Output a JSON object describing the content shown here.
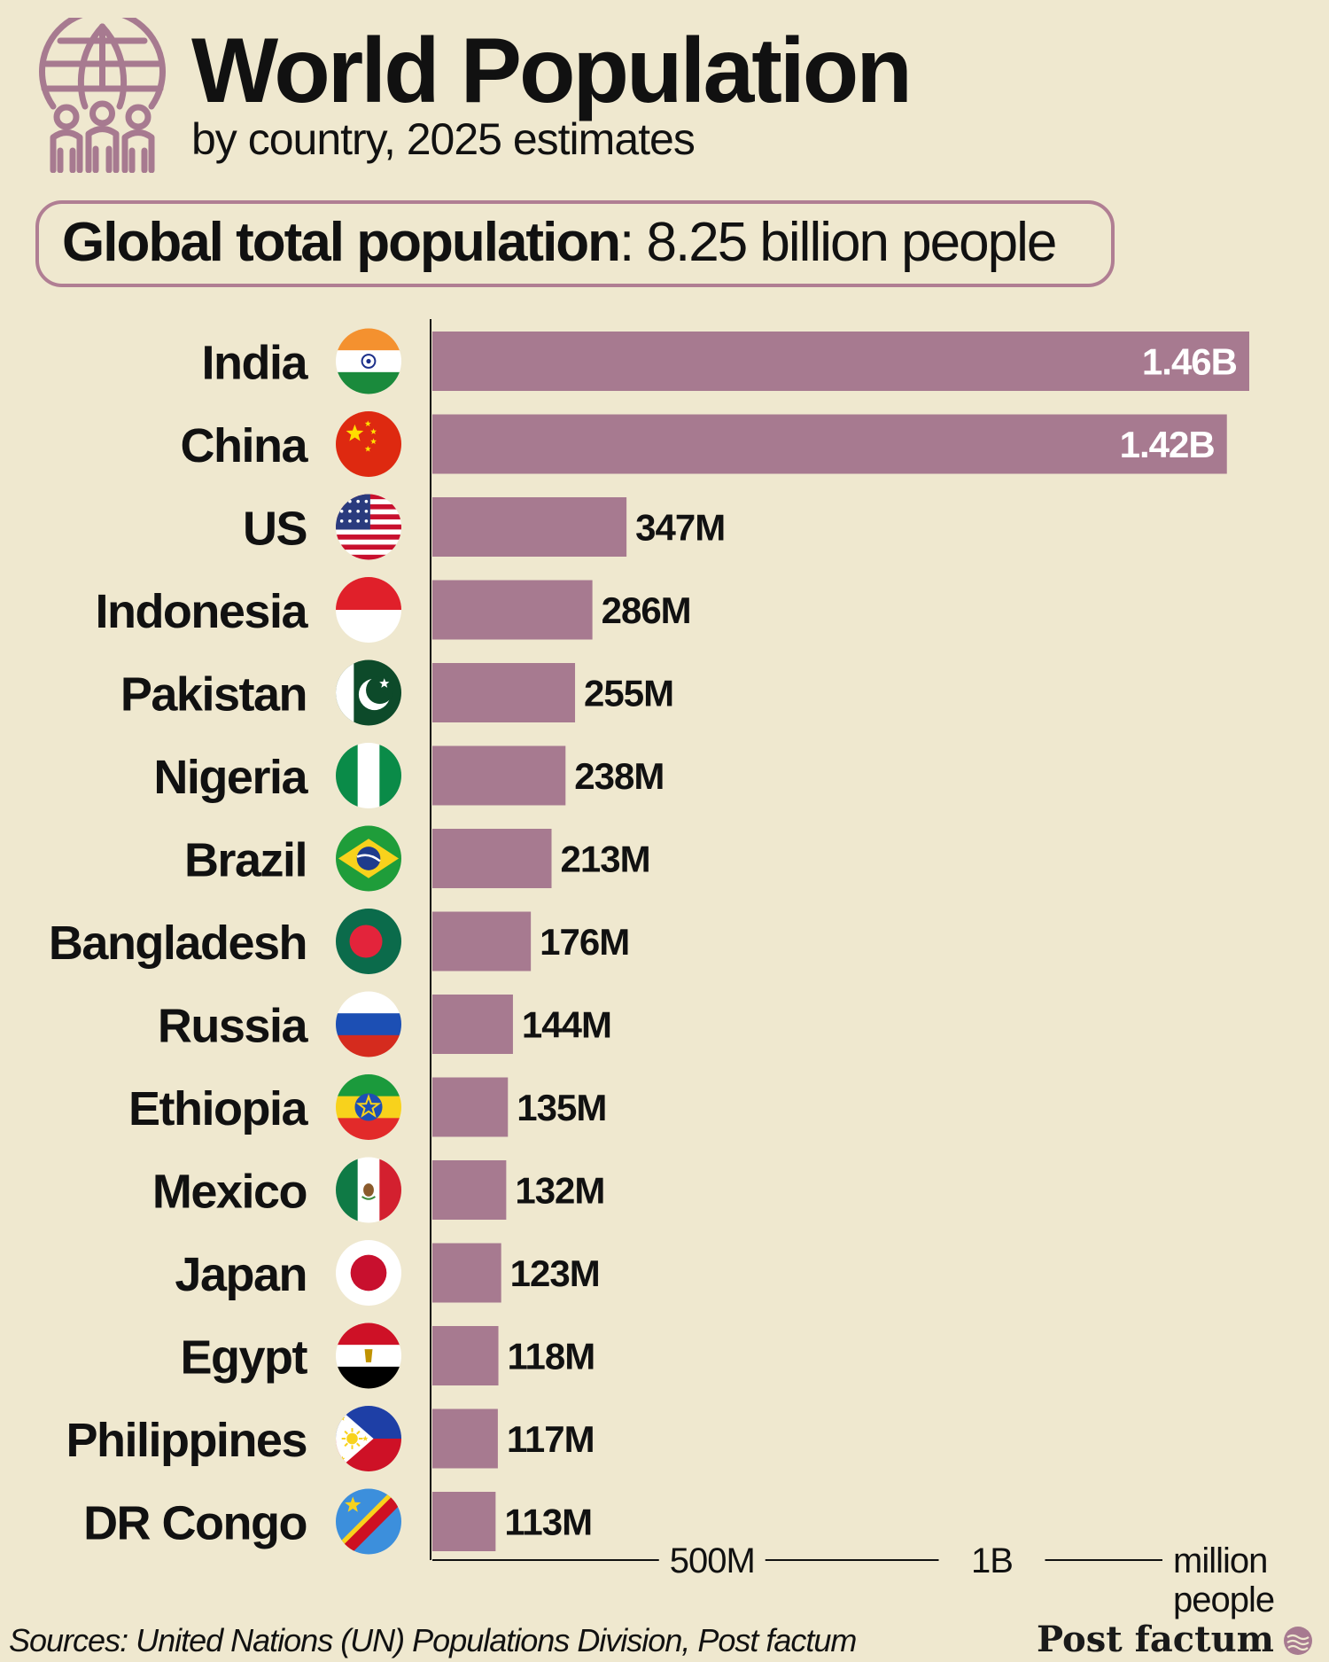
{
  "header": {
    "title": "World Population",
    "subtitle": "by country, 2025 estimates"
  },
  "total": {
    "label": "Global total population",
    "separator": ":",
    "value": "8.25 billion people"
  },
  "footer": {
    "sources": "Sources: United Nations (UN) Populations Division, Post factum",
    "brand": "Post factum"
  },
  "colors": {
    "bar": "#a77a90",
    "background": "#efe8cf",
    "accent": "#b07e93"
  },
  "chart_data": {
    "type": "bar",
    "orientation": "horizontal",
    "title": "",
    "xlabel": "million people",
    "x_unit": "million people",
    "xlim": [
      0,
      1460
    ],
    "x_ticks": [
      {
        "value": 500,
        "label": "500M"
      },
      {
        "value": 1000,
        "label": "1B"
      }
    ],
    "axis_end_label": [
      "million",
      "people"
    ],
    "categories": [
      "India",
      "China",
      "US",
      "Indonesia",
      "Pakistan",
      "Nigeria",
      "Brazil",
      "Bangladesh",
      "Russia",
      "Ethiopia",
      "Mexico",
      "Japan",
      "Egypt",
      "Philippines",
      "DR Congo"
    ],
    "values": [
      1460,
      1420,
      347,
      286,
      255,
      238,
      213,
      176,
      144,
      135,
      132,
      123,
      118,
      117,
      113
    ],
    "value_labels": [
      "1.46B",
      "1.42B",
      "347M",
      "286M",
      "255M",
      "238M",
      "213M",
      "176M",
      "144M",
      "135M",
      "132M",
      "123M",
      "118M",
      "117M",
      "113M"
    ],
    "flags": [
      "india-flag-icon",
      "china-flag-icon",
      "us-flag-icon",
      "indonesia-flag-icon",
      "pakistan-flag-icon",
      "nigeria-flag-icon",
      "brazil-flag-icon",
      "bangladesh-flag-icon",
      "russia-flag-icon",
      "ethiopia-flag-icon",
      "mexico-flag-icon",
      "japan-flag-icon",
      "egypt-flag-icon",
      "philippines-flag-icon",
      "dr-congo-flag-icon"
    ],
    "legend": "none",
    "grid": false
  }
}
